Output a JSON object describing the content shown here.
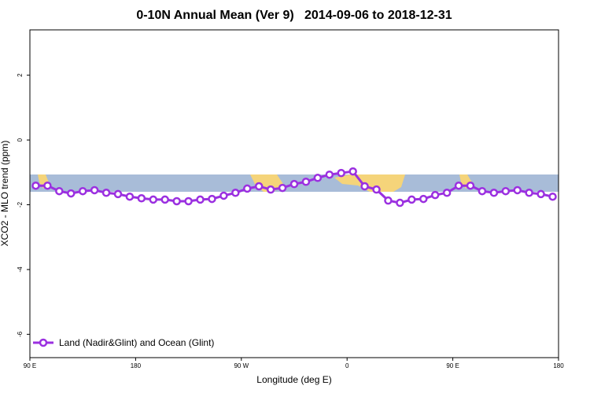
{
  "chart_data": {
    "type": "line",
    "title": "0-10N Annual Mean (Ver 9)   2014-09-06 to 2018-12-31",
    "x_label": "Longitude (deg E)",
    "y_label": "XCO2 - MLO trend (ppm)",
    "x": [
      95,
      105,
      115,
      125,
      135,
      145,
      155,
      165,
      175,
      185,
      195,
      205,
      215,
      225,
      235,
      245,
      255,
      265,
      275,
      285,
      295,
      305,
      315,
      325,
      335,
      345,
      355,
      365,
      375,
      385,
      395,
      405,
      415,
      425,
      435,
      445,
      455,
      465,
      475,
      485,
      495,
      505,
      515,
      525,
      535
    ],
    "series": [
      {
        "name": "Land (Nadir&Glint) and Ocean (Glint)",
        "color": "#9b30e0",
        "values": [
          -1.41,
          -1.41,
          -1.58,
          -1.65,
          -1.58,
          -1.55,
          -1.63,
          -1.67,
          -1.75,
          -1.8,
          -1.84,
          -1.84,
          -1.89,
          -1.89,
          -1.84,
          -1.82,
          -1.72,
          -1.63,
          -1.5,
          -1.43,
          -1.53,
          -1.48,
          -1.36,
          -1.29,
          -1.17,
          -1.07,
          -1.02,
          -0.97,
          -1.43,
          -1.53,
          -1.87,
          -1.94,
          -1.84,
          -1.82,
          -1.7,
          -1.63,
          -1.41,
          -1.41,
          -1.58,
          -1.63,
          -1.58,
          -1.55,
          -1.63,
          -1.67,
          -1.75
        ]
      }
    ],
    "xlim": [
      90,
      540
    ],
    "xticks": [
      {
        "value": 90,
        "label": "90 E"
      },
      180,
      {
        "value": 270,
        "label": "90 W"
      },
      {
        "value": 360,
        "label": "0"
      },
      {
        "value": 450,
        "label": "90 E"
      },
      {
        "value": 540,
        "label": "180"
      }
    ],
    "ylim": [
      -6.72,
      3.4
    ],
    "yticks": [
      2,
      0,
      -2,
      -4,
      -6
    ],
    "legend": "bottom-left"
  }
}
